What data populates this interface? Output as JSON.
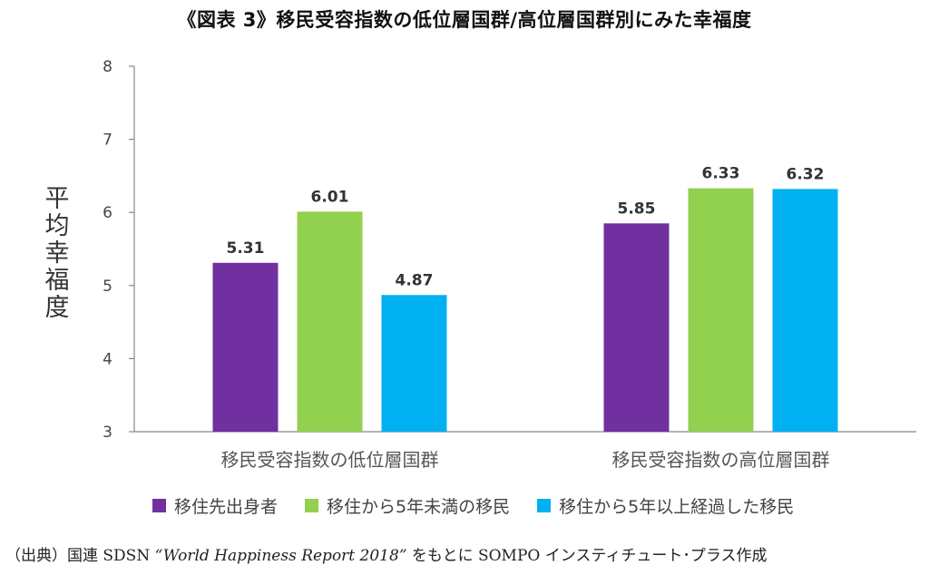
{
  "title": "《図表 3》移民受容指数の低位層国群/高位層国群別にみた幸福度",
  "source": {
    "prefix": "（出典）国連 SDSN ",
    "report": "“World Happiness Report 2018”",
    "suffix": " をもとに SOMPO インスティチュート･プラス作成"
  },
  "chart_data": {
    "type": "bar",
    "title": "《図表 3》移民受容指数の低位層国群/高位層国群別にみた幸福度",
    "ylabel": "平均幸福度",
    "xlabel": "",
    "ylim": [
      3,
      8
    ],
    "yticks": [
      "3",
      "4",
      "5",
      "6",
      "7",
      "8"
    ],
    "grid": false,
    "legend_position": "bottom",
    "categories": [
      "移民受容指数の低位層国群",
      "移民受容指数の高位層国群"
    ],
    "series": [
      {
        "name": "移住先出身者",
        "color": "#7030a0",
        "values": [
          5.31,
          5.85
        ],
        "labels": [
          "5.31",
          "5.85"
        ]
      },
      {
        "name": "移住から5年未満の移民",
        "color": "#92d050",
        "values": [
          6.01,
          6.33
        ],
        "labels": [
          "6.01",
          "6.33"
        ]
      },
      {
        "name": "移住から5年以上経過した移民",
        "color": "#00b0f0",
        "values": [
          4.87,
          6.32
        ],
        "labels": [
          "4.87",
          "6.32"
        ]
      }
    ]
  }
}
